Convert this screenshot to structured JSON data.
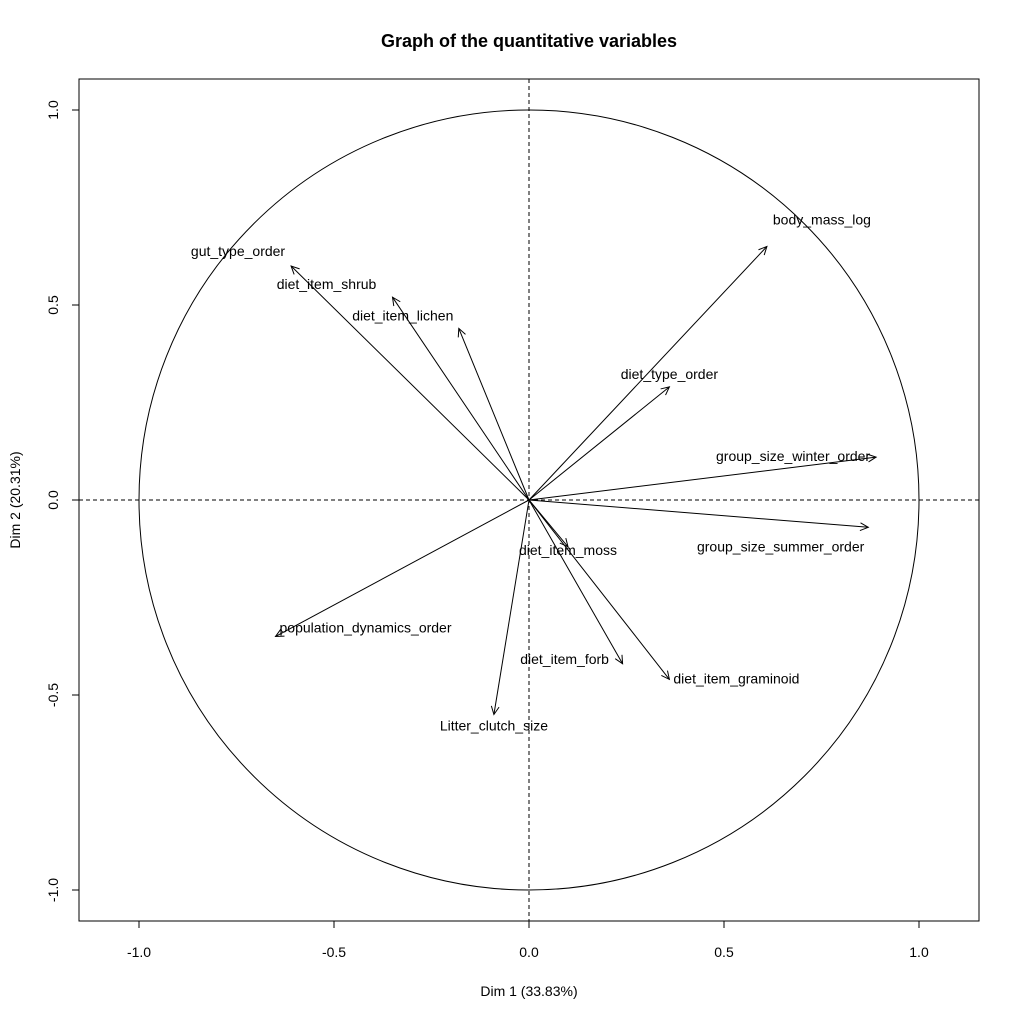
{
  "chart_data": {
    "type": "scatter",
    "title": "Graph of the quantitative variables",
    "xlabel": "Dim 1 (33.83%)",
    "ylabel": "Dim 2 (20.31%)",
    "xlim": [
      -1.0,
      1.0
    ],
    "ylim": [
      -1.0,
      1.0
    ],
    "x_ticks": [
      "-1.0",
      "-0.5",
      "0.0",
      "0.5",
      "1.0"
    ],
    "y_ticks": [
      "-1.0",
      "-0.5",
      "0.0",
      "0.5",
      "1.0"
    ],
    "unit_circle": true,
    "reference_lines": "dashed at x=0 and y=0",
    "series": [
      {
        "label": "body_mass_log",
        "x": 0.61,
        "y": 0.65
      },
      {
        "label": "gut_type_order",
        "x": -0.61,
        "y": 0.6
      },
      {
        "label": "diet_item_shrub",
        "x": -0.35,
        "y": 0.52
      },
      {
        "label": "diet_item_lichen",
        "x": -0.18,
        "y": 0.44
      },
      {
        "label": "diet_type_order",
        "x": 0.36,
        "y": 0.29
      },
      {
        "label": "group_size_winter_order",
        "x": 0.89,
        "y": 0.11
      },
      {
        "label": "group_size_summer_order",
        "x": 0.87,
        "y": -0.07
      },
      {
        "label": "diet_item_moss",
        "x": 0.1,
        "y": -0.12
      },
      {
        "label": "population_dynamics_order",
        "x": -0.65,
        "y": -0.35
      },
      {
        "label": "diet_item_forb",
        "x": 0.24,
        "y": -0.42
      },
      {
        "label": "diet_item_graminoid",
        "x": 0.36,
        "y": -0.46
      },
      {
        "label": "Litter_clutch_size",
        "x": -0.09,
        "y": -0.55
      }
    ]
  }
}
